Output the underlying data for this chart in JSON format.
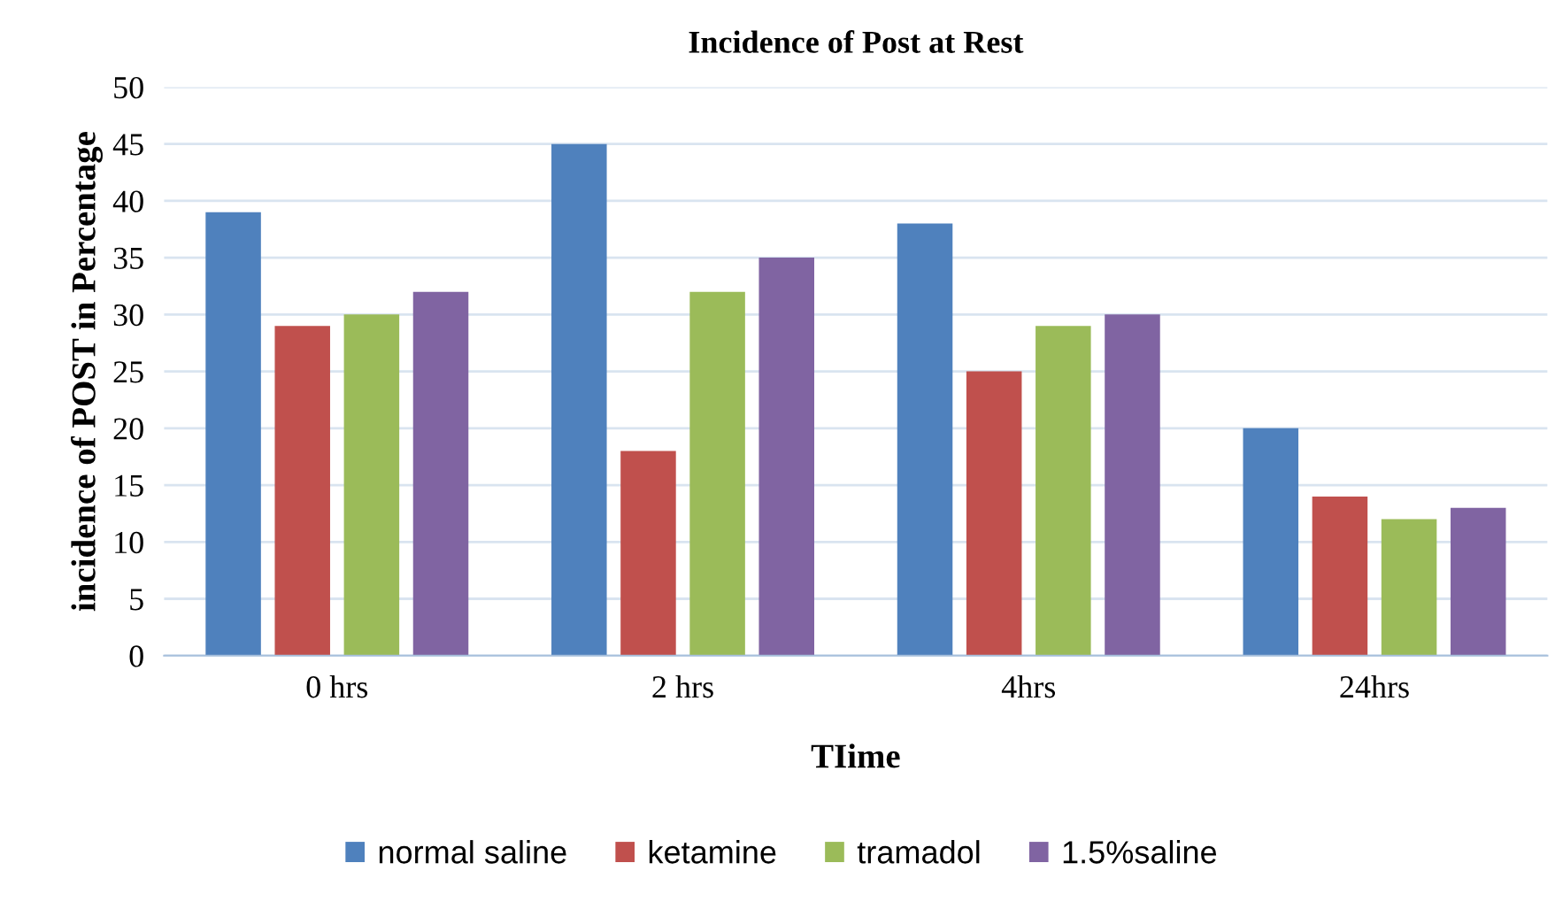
{
  "chart_data": {
    "type": "bar",
    "title": "Incidence of Post at Rest",
    "xlabel": "TIime",
    "ylabel": "incidence of POST in Percentage",
    "categories": [
      "0 hrs",
      "2 hrs",
      "4hrs",
      "24hrs"
    ],
    "series": [
      {
        "name": "normal saline",
        "color": "#4f81bd",
        "values": [
          39,
          45,
          38,
          20
        ]
      },
      {
        "name": "ketamine",
        "color": "#c0504d",
        "values": [
          29,
          18,
          25,
          14
        ]
      },
      {
        "name": "tramadol",
        "color": "#9bbb59",
        "values": [
          30,
          32,
          29,
          12
        ]
      },
      {
        "name": "1.5%saline",
        "color": "#8064a2",
        "values": [
          32,
          35,
          30,
          13
        ]
      }
    ],
    "ylim": [
      0,
      50
    ],
    "yticks": [
      0,
      5,
      10,
      15,
      20,
      25,
      30,
      35,
      40,
      45,
      50
    ],
    "grid": "y",
    "legend": "bottom"
  }
}
